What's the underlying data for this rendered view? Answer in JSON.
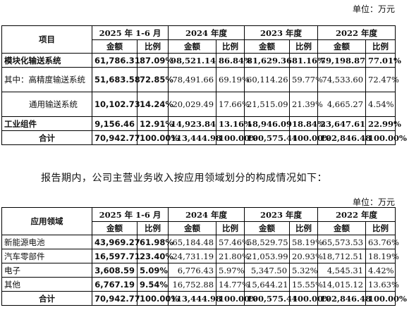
{
  "unit_label": "单位：万元",
  "note": "报告期内，公司主营业务收入按应用领域划分的构成情况如下：",
  "table1": {
    "col_header": "项目",
    "periods": [
      "2025 年 1-6 月",
      "2024 年度",
      "2023 年度",
      "2022 年度"
    ],
    "sub_amount": "金额",
    "sub_ratio": "比例",
    "rows": [
      {
        "label": "模块化输送系统",
        "cells": [
          "61,786.31",
          "87.09%",
          "98,521.14",
          "86.84%",
          "81,629.36",
          "81.16%",
          "79,198.87",
          "77.01%"
        ],
        "bold": true
      },
      {
        "label": "其中：高精度输送系统",
        "cells": [
          "51,683.58",
          "72.85%",
          "78,491.66",
          "69.19%",
          "60,114.26",
          "59.77%",
          "74,533.60",
          "72.47%"
        ],
        "bold": false
      },
      {
        "label": "通用输送系统",
        "cells": [
          "10,102.73",
          "14.24%",
          "20,029.49",
          "17.66%",
          "21,515.09",
          "21.39%",
          "4,665.27",
          "4.54%"
        ],
        "bold": false
      },
      {
        "label": "工业组件",
        "cells": [
          "9,156.46",
          "12.91%",
          "14,923.84",
          "13.16%",
          "18,946.09",
          "18.84%",
          "23,647.61",
          "22.99%"
        ],
        "bold": true
      },
      {
        "label": "合计",
        "cells": [
          "70,942.77",
          "100.00%",
          "113,444.98",
          "100.00%",
          "100,575.44",
          "100.00%",
          "102,846.48",
          "100.00%"
        ],
        "bold": true
      }
    ]
  },
  "table2": {
    "col_header": "应用领域",
    "periods": [
      "2025 年 1-6 月",
      "2024 年度",
      "2023 年度",
      "2022 年度"
    ],
    "sub_amount": "金额",
    "sub_ratio": "比例",
    "rows": [
      {
        "label": "新能源电池",
        "cells": [
          "43,969.27",
          "61.98%",
          "65,184.48",
          "57.46%",
          "58,529.75",
          "58.19%",
          "65,573.53",
          "63.76%"
        ]
      },
      {
        "label": "汽车零部件",
        "cells": [
          "16,597.71",
          "23.40%",
          "24,731.19",
          "21.80%",
          "21,053.99",
          "20.93%",
          "18,712.51",
          "18.19%"
        ]
      },
      {
        "label": "电子",
        "cells": [
          "3,608.59",
          "5.09%",
          "6,776.43",
          "5.97%",
          "5,347.50",
          "5.32%",
          "4,545.31",
          "4.42%"
        ]
      },
      {
        "label": "其他",
        "cells": [
          "6,767.19",
          "9.54%",
          "16,752.88",
          "14.77%",
          "15,644.21",
          "15.55%",
          "14,015.12",
          "13.63%"
        ]
      },
      {
        "label": "合计",
        "cells": [
          "70,942.77",
          "100.00%",
          "113,444.98",
          "100.00%",
          "100,575.44",
          "100.00%",
          "102,846.48",
          "100.00%"
        ]
      }
    ]
  }
}
